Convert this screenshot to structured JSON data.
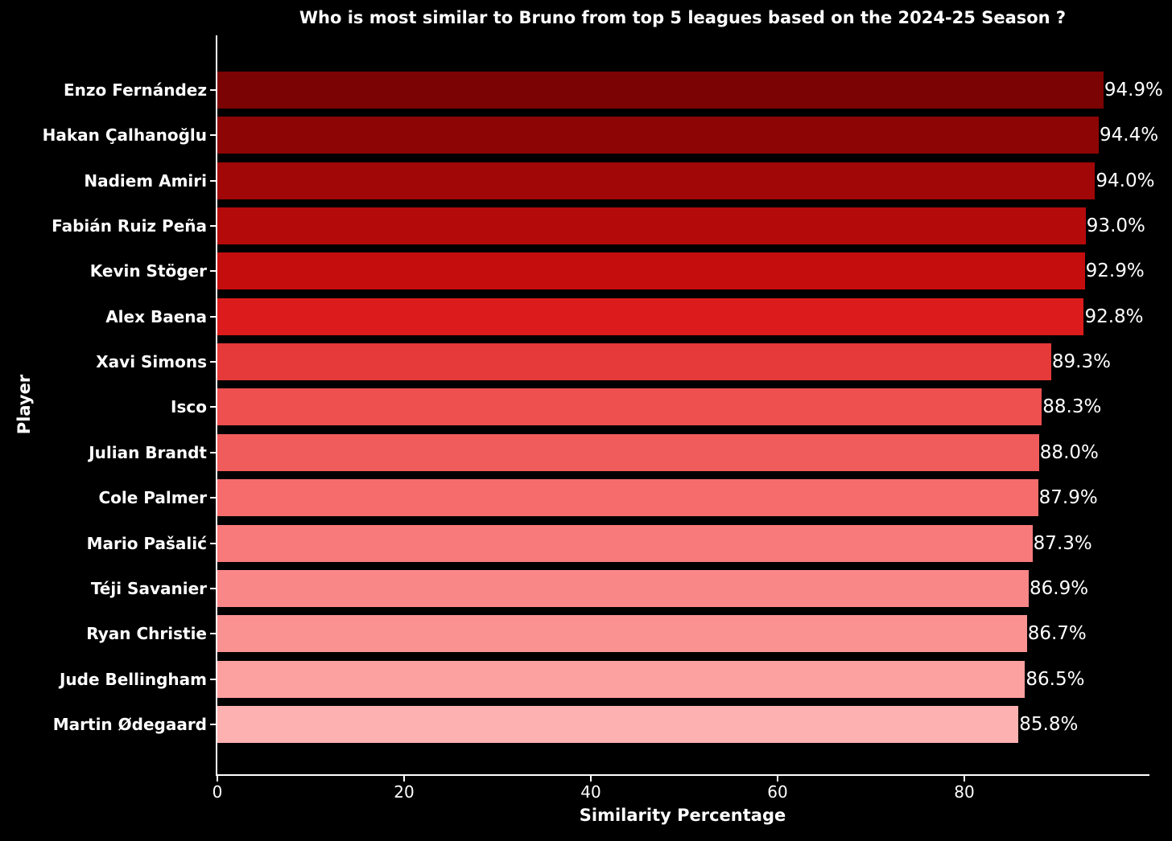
{
  "chart_data": {
    "type": "bar",
    "orientation": "horizontal",
    "title": "Who is most similar to Bruno from top 5 leagues based on the 2024-25 Season ?",
    "xlabel": "Similarity Percentage",
    "ylabel": "Player",
    "categories": [
      "Enzo Fernández",
      "Hakan Çalhanoğlu",
      "Nadiem Amiri",
      "Fabián Ruiz Peña",
      "Kevin Stöger",
      "Alex Baena",
      "Xavi Simons",
      "Isco",
      "Julian Brandt",
      "Cole Palmer",
      "Mario Pašalić",
      "Téji Savanier",
      "Ryan Christie",
      "Jude Bellingham",
      "Martin Ødegaard"
    ],
    "values": [
      94.9,
      94.4,
      94.0,
      93.0,
      92.9,
      92.8,
      89.3,
      88.3,
      88.0,
      87.9,
      87.3,
      86.9,
      86.7,
      86.5,
      85.8
    ],
    "value_labels": [
      "94.9%",
      "94.4%",
      "94.0%",
      "93.0%",
      "92.9%",
      "92.8%",
      "89.3%",
      "88.3%",
      "88.0%",
      "87.9%",
      "87.3%",
      "86.9%",
      "86.7%",
      "86.5%",
      "85.8%"
    ],
    "bar_colors": [
      "#7c0303",
      "#8e0505",
      "#a10707",
      "#b40a0a",
      "#c60d0d",
      "#dc1c1c",
      "#e63939",
      "#ee4f4f",
      "#f05b5b",
      "#f66c6c",
      "#f87a7a",
      "#fa8787",
      "#fb9292",
      "#fca0a0",
      "#fdb1b1"
    ],
    "xtick_labels": [
      "0",
      "20",
      "40",
      "60",
      "80"
    ],
    "xtick_values": [
      0,
      20,
      40,
      60,
      80
    ],
    "xlim": [
      0,
      100
    ],
    "grid": false,
    "legend_position": "none",
    "background_color": "#000000",
    "text_color": "#ffffff",
    "axis_color": "#ffffff"
  }
}
